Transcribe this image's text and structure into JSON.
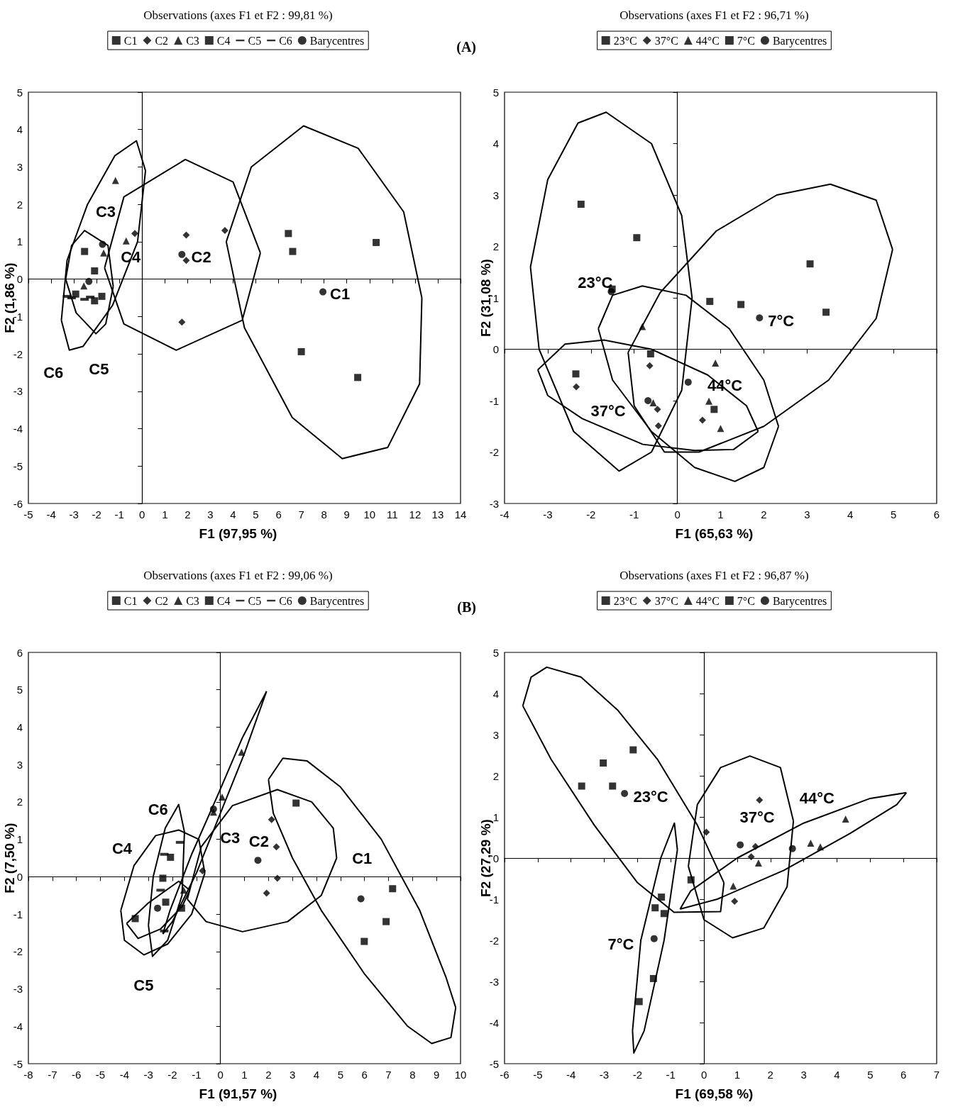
{
  "chart_data": [
    {
      "type": "scatter",
      "title": "Observations (axes F1 et F2 : 99,81 %)",
      "xlabel": "F1 (97,95 %)",
      "ylabel": "F2 (1,86 %)",
      "legend": "top",
      "xlim": [
        -5,
        14
      ],
      "ylim": [
        -6,
        5
      ],
      "xticks": [
        -5,
        -4,
        -3,
        -2,
        -1,
        0,
        1,
        2,
        3,
        4,
        5,
        6,
        7,
        8,
        9,
        10,
        11,
        12,
        13,
        14
      ],
      "yticks": [
        -6,
        -5,
        -4,
        -3,
        -2,
        -1,
        0,
        1,
        2,
        3,
        4,
        5
      ],
      "annotations": [
        "(A)",
        "C1",
        "C2",
        "C3",
        "C4",
        "C5",
        "C6"
      ],
      "series": [
        {
          "name": "C1",
          "marker": "square",
          "color": "#000000",
          "x": [
            6.43,
            6.62,
            10.29,
            7.0,
            9.48
          ],
          "values": [
            1.22,
            0.74,
            0.98,
            -1.94,
            -2.63
          ]
        },
        {
          "name": "C2",
          "marker": "diamond",
          "color": "#000000",
          "x": [
            -0.32,
            1.94,
            3.64,
            1.94,
            1.75
          ],
          "values": [
            1.22,
            1.18,
            1.3,
            0.5,
            -1.15
          ]
        },
        {
          "name": "C3",
          "marker": "triangle",
          "color": "#000000",
          "x": [
            -1.17,
            -0.7,
            -1.69,
            -2.56
          ],
          "values": [
            2.64,
            1.02,
            0.7,
            -0.18
          ]
        },
        {
          "name": "C4",
          "marker": "square",
          "color": "#000000",
          "x": [
            -2.53,
            -2.09,
            -1.77,
            -2.09,
            -2.92
          ],
          "values": [
            0.74,
            0.22,
            -0.46,
            -0.58,
            -0.4
          ]
        },
        {
          "name": "C5",
          "color": "#000000",
          "x": [
            -3.3,
            -2.28
          ],
          "values": [
            -0.46,
            -0.48
          ]
        },
        {
          "name": "C6",
          "color": "#000000",
          "x": [
            -3.1,
            -2.53
          ],
          "values": [
            -0.5,
            -0.54
          ]
        },
        {
          "name": "Barycentres",
          "marker": "circle",
          "color": "#000000",
          "x": [
            7.95,
            1.75,
            -1.74,
            -2.34
          ],
          "values": [
            -0.34,
            0.66,
            0.93,
            -0.06
          ]
        },
        {
          "type": "line",
          "marker": "none",
          "color": "#000000",
          "x": [
            3.7,
            4.8,
            7.1,
            9.5,
            11.5,
            12.3,
            null,
            3.7,
            4.5,
            6.6,
            8.8,
            10.8,
            12.2,
            12.3
          ],
          "values": [
            1.0,
            3.0,
            4.1,
            3.5,
            1.8,
            -0.5,
            null,
            1.0,
            -1.3,
            -3.7,
            -4.8,
            -4.5,
            -2.8,
            -0.5
          ]
        },
        {
          "type": "line",
          "marker": "none",
          "color": "#000000",
          "x": [
            -1.65,
            -0.8,
            1.9,
            4.0,
            5.2,
            null,
            -1.65,
            -0.8,
            1.5,
            4.4,
            5.2
          ],
          "values": [
            0.3,
            2.2,
            3.2,
            2.6,
            0.7,
            null,
            0.3,
            -1.2,
            -1.9,
            -1.1,
            0.7
          ]
        },
        {
          "type": "line",
          "marker": "none",
          "color": "#000000",
          "x": [
            -3.55,
            -3.3,
            -2.4,
            -1.2,
            -0.25,
            0.15,
            null,
            -3.55,
            -3.2,
            -2.6,
            -1.3,
            -0.2,
            0.15
          ],
          "values": [
            -1.1,
            0.5,
            2.0,
            3.3,
            3.7,
            2.9,
            null,
            -1.1,
            -1.9,
            -1.8,
            -0.7,
            1.0,
            2.9
          ]
        },
        {
          "type": "line",
          "marker": "none",
          "color": "#000000",
          "x": [
            -3.36,
            -3.1,
            -2.53,
            -1.5,
            -1.27,
            null,
            -3.36,
            -2.9,
            -2.03,
            -1.6,
            -1.27
          ],
          "values": [
            0,
            0.9,
            1.3,
            0.9,
            -0.2,
            null,
            0,
            -0.9,
            -1.46,
            -1.2,
            -0.2
          ]
        }
      ]
    },
    {
      "type": "scatter",
      "title": "Observations (axes F1 et F2 : 96,71 %)",
      "xlabel": "F1 (65,63 %)",
      "ylabel": "F2 (31,08 %)",
      "legend": "top",
      "xlim": [
        -4,
        6
      ],
      "ylim": [
        -3,
        5
      ],
      "xticks": [
        -4,
        -3,
        -2,
        -1,
        0,
        1,
        2,
        3,
        4,
        5,
        6
      ],
      "yticks": [
        -3,
        -2,
        -1,
        0,
        1,
        2,
        3,
        4,
        5
      ],
      "annotations": [
        "23°C",
        "37°C",
        "44°C",
        "7°C"
      ],
      "series": [
        {
          "name": "23°C",
          "marker": "square",
          "color": "#000000",
          "x": [
            -2.23,
            -0.94,
            -1.51,
            -0.62,
            -2.35
          ],
          "values": [
            2.82,
            2.17,
            1.17,
            -0.09,
            -0.48
          ]
        },
        {
          "name": "37°C",
          "marker": "diamond",
          "color": "#000000",
          "x": [
            -2.34,
            -0.64,
            -0.46,
            -0.44,
            0.58
          ],
          "values": [
            -0.73,
            -0.32,
            -1.17,
            -1.49,
            -1.38
          ]
        },
        {
          "name": "44°C",
          "marker": "triangle",
          "color": "#000000",
          "x": [
            -0.81,
            0.88,
            0.73,
            1.0,
            -0.56
          ],
          "values": [
            0.44,
            -0.27,
            -1.01,
            -1.54,
            -1.04
          ]
        },
        {
          "name": "7°C",
          "marker": "square",
          "color": "#000000",
          "x": [
            0.75,
            1.47,
            3.07,
            3.44,
            0.85
          ],
          "values": [
            0.93,
            0.87,
            1.66,
            0.72,
            -1.17
          ]
        },
        {
          "name": "Barycentres",
          "marker": "circle",
          "color": "#000000",
          "x": [
            -1.53,
            -0.68,
            0.25,
            1.9
          ],
          "values": [
            1.12,
            -1.0,
            -0.64,
            0.61
          ]
        },
        {
          "type": "line",
          "marker": "none",
          "color": "#000000",
          "x": [
            -3.4,
            -3.0,
            -2.3,
            -1.65,
            -0.6,
            0.1,
            0.34,
            null,
            -3.4,
            -3.2,
            -2.4,
            -1.35,
            -0.6,
            0.1,
            0.34
          ],
          "values": [
            1.6,
            3.3,
            4.4,
            4.61,
            4.0,
            2.6,
            1.0,
            null,
            1.6,
            0,
            -1.6,
            -2.37,
            -2.0,
            -0.8,
            1.0
          ]
        },
        {
          "type": "line",
          "marker": "none",
          "color": "#000000",
          "x": [
            -3.23,
            -2.6,
            -1.7,
            -0.6,
            0.7,
            1.6,
            1.87,
            null,
            -3.23,
            -3.0,
            -2.2,
            -0.8,
            0.4,
            1.3,
            1.87
          ],
          "values": [
            -0.4,
            0.1,
            0.18,
            0,
            -0.5,
            -1.1,
            -1.6,
            null,
            -0.4,
            -0.9,
            -1.35,
            -1.85,
            -1.97,
            -1.95,
            -1.6
          ]
        },
        {
          "type": "line",
          "marker": "none",
          "color": "#000000",
          "x": [
            -1.83,
            -1.5,
            -0.81,
            0.2,
            1.2,
            2.0,
            2.34,
            null,
            -1.83,
            -1.5,
            -0.6,
            0.4,
            1.33,
            2.0,
            2.34
          ],
          "values": [
            0.4,
            1.05,
            1.23,
            1.05,
            0.4,
            -0.6,
            -1.5,
            null,
            0.4,
            -0.6,
            -1.6,
            -2.3,
            -2.57,
            -2.3,
            -1.5
          ]
        },
        {
          "type": "line",
          "marker": "none",
          "color": "#000000",
          "x": [
            -1.14,
            -0.4,
            0.9,
            2.3,
            3.54,
            4.6,
            4.98,
            null,
            -1.14,
            -1.0,
            -0.3,
            0.5,
            2.0,
            3.5,
            4.6,
            4.98
          ],
          "values": [
            -0.06,
            1.1,
            2.3,
            3.0,
            3.21,
            2.9,
            1.94,
            null,
            -0.06,
            -1.1,
            -2.0,
            -2.0,
            -1.5,
            -0.6,
            0.6,
            1.94
          ]
        }
      ]
    },
    {
      "type": "scatter",
      "title": "Observations (axes F1 et F2 : 99,06 %)",
      "xlabel": "F1 (91,57 %)",
      "ylabel": "F2 (7,50 %)",
      "legend": "top",
      "xlim": [
        -8,
        10
      ],
      "ylim": [
        -5,
        6
      ],
      "xticks": [
        -8,
        -7,
        -6,
        -5,
        -4,
        -3,
        -2,
        -1,
        0,
        1,
        2,
        3,
        4,
        5,
        6,
        7,
        8,
        9,
        10
      ],
      "yticks": [
        -5,
        -4,
        -3,
        -2,
        -1,
        0,
        1,
        2,
        3,
        4,
        5,
        6
      ],
      "annotations": [
        "(B)",
        "C1",
        "C2",
        "C3",
        "C4",
        "C5",
        "C6"
      ],
      "series": [
        {
          "name": "C1",
          "marker": "square",
          "color": "#000000",
          "x": [
            3.15,
            7.17,
            6.9,
            5.99
          ],
          "values": [
            1.97,
            -0.32,
            -1.2,
            -1.73
          ]
        },
        {
          "name": "C2",
          "marker": "diamond",
          "color": "#000000",
          "x": [
            2.13,
            2.33,
            2.37,
            1.92,
            -0.75
          ],
          "values": [
            1.53,
            0.8,
            -0.04,
            -0.44,
            0.16
          ]
        },
        {
          "name": "C3",
          "marker": "triangle",
          "color": "#000000",
          "x": [
            0.88,
            0.07,
            -0.29,
            -1.53
          ],
          "values": [
            3.33,
            2.13,
            1.73,
            -0.36
          ]
        },
        {
          "name": "C4",
          "marker": "square",
          "color": "#000000",
          "x": [
            -3.55,
            -2.4,
            -2.08,
            -2.28,
            -1.62
          ],
          "values": [
            -1.12,
            -0.04,
            0.52,
            -0.68,
            -0.84
          ]
        },
        {
          "name": "C5",
          "color": "#000000",
          "x": [
            -2.34,
            -2.34
          ],
          "values": [
            0.6,
            -1.45
          ]
        },
        {
          "name": "C6",
          "color": "#000000",
          "x": [
            -1.68,
            -2.49
          ],
          "values": [
            0.92,
            -0.36
          ]
        },
        {
          "name": "Barycentres",
          "marker": "circle",
          "color": "#000000",
          "x": [
            5.85,
            1.56,
            -0.29,
            -2.62
          ],
          "values": [
            -0.59,
            0.44,
            1.81,
            -0.84
          ]
        },
        {
          "type": "line",
          "marker": "none",
          "color": "#000000",
          "x": [
            2.0,
            2.6,
            3.6,
            5.0,
            6.7,
            8.3,
            9.4,
            9.8,
            null,
            2.0,
            2.2,
            3.0,
            4.2,
            6.0,
            7.8,
            8.8,
            9.6,
            9.8
          ],
          "values": [
            2.6,
            3.17,
            3.1,
            2.4,
            1.0,
            -0.9,
            -2.7,
            -3.5,
            null,
            2.6,
            1.7,
            0.5,
            -0.9,
            -2.6,
            -4.0,
            -4.46,
            -4.3,
            -3.5
          ]
        },
        {
          "type": "line",
          "marker": "none",
          "color": "#000000",
          "x": [
            -1.38,
            -0.8,
            0.5,
            2.37,
            3.8,
            4.7,
            4.84,
            null,
            -1.38,
            -0.6,
            0.92,
            2.8,
            4.2,
            4.84
          ],
          "values": [
            -0.6,
            0.8,
            1.9,
            2.33,
            2.0,
            1.3,
            0.5,
            null,
            -0.6,
            -1.2,
            -1.47,
            -1.2,
            -0.5,
            0.5
          ]
        },
        {
          "type": "line",
          "marker": "none",
          "color": "#000000",
          "x": [
            -2.4,
            -2.1,
            -1.2,
            -0.1,
            0.9,
            1.92,
            null,
            -2.4,
            -2.0,
            -1.0,
            0.0,
            1.0,
            1.92
          ],
          "values": [
            -1.53,
            -0.9,
            0.6,
            2.2,
            3.7,
            4.96,
            null,
            -1.53,
            -1.2,
            0.1,
            1.7,
            3.3,
            4.96
          ]
        },
        {
          "type": "line",
          "marker": "none",
          "color": "#000000",
          "x": [
            -4.15,
            -3.6,
            -2.7,
            -1.74,
            -0.9,
            -0.65,
            null,
            -4.15,
            -4.0,
            -3.19,
            -2.2,
            -1.2,
            -0.65
          ],
          "values": [
            -0.9,
            0.3,
            1.1,
            1.25,
            1.0,
            0.1,
            null,
            -0.9,
            -1.7,
            -2.09,
            -1.8,
            -1.0,
            0.1
          ]
        },
        {
          "type": "line",
          "marker": "none",
          "color": "#000000",
          "x": [
            -3.0,
            -2.8,
            -2.3,
            -1.74,
            -1.5,
            null,
            -3.0,
            -2.83,
            -2.2,
            -1.6,
            -1.5
          ],
          "values": [
            -1.3,
            0,
            1.3,
            1.93,
            1.2,
            null,
            -1.3,
            -2.13,
            -1.7,
            -0.5,
            1.2
          ]
        },
        {
          "type": "line",
          "marker": "none",
          "color": "#000000",
          "x": [
            -3.91,
            -3.0,
            -1.74,
            -1.28,
            null,
            -3.91,
            -3.43,
            -2.5,
            -1.6,
            -1.28
          ],
          "values": [
            -1.25,
            -0.7,
            -0.12,
            -0.36,
            null,
            -1.25,
            -1.65,
            -1.4,
            -0.8,
            -0.36
          ]
        }
      ]
    },
    {
      "type": "scatter",
      "title": "Observations (axes F1 et F2 : 96,87 %)",
      "xlabel": "F1 (69,58 %)",
      "ylabel": "F2 (27,29 %)",
      "legend": "top",
      "xlim": [
        -6,
        7
      ],
      "ylim": [
        -5,
        5
      ],
      "xticks": [
        -6,
        -5,
        -4,
        -3,
        -2,
        -1,
        0,
        1,
        2,
        3,
        4,
        5,
        6,
        7
      ],
      "yticks": [
        -5,
        -4,
        -3,
        -2,
        -1,
        0,
        1,
        2,
        3,
        4,
        5
      ],
      "annotations": [
        "23°C",
        "37°C",
        "44°C",
        "7°C"
      ],
      "series": [
        {
          "name": "23°C",
          "marker": "square",
          "color": "#000000",
          "x": [
            -3.68,
            -3.03,
            -2.13,
            -2.75,
            -0.39
          ],
          "values": [
            1.75,
            2.31,
            2.63,
            1.75,
            -0.53
          ]
        },
        {
          "name": "37°C",
          "marker": "diamond",
          "color": "#000000",
          "x": [
            0.07,
            1.67,
            1.55,
            1.42,
            0.92
          ],
          "values": [
            0.63,
            1.41,
            0.28,
            0.03,
            -1.05
          ]
        },
        {
          "name": "44°C",
          "marker": "triangle",
          "color": "#000000",
          "x": [
            4.26,
            3.21,
            3.5,
            1.64,
            0.88
          ],
          "values": [
            0.95,
            0.36,
            0.27,
            -0.12,
            -0.68
          ]
        },
        {
          "name": "7°C",
          "marker": "square",
          "color": "#000000",
          "x": [
            -1.28,
            -1.47,
            -1.2,
            -1.52,
            -1.95
          ],
          "values": [
            -0.95,
            -1.21,
            -1.35,
            -2.93,
            -3.49
          ]
        },
        {
          "name": "Barycentres",
          "marker": "circle",
          "color": "#000000",
          "x": [
            -2.39,
            1.09,
            2.66,
            -1.5
          ],
          "values": [
            1.57,
            0.32,
            0.23,
            -1.96
          ]
        },
        {
          "type": "line",
          "marker": "none",
          "color": "#000000",
          "x": [
            -5.45,
            -5.2,
            -4.73,
            -3.7,
            -2.6,
            -1.4,
            -0.2,
            0.6,
            null,
            -5.45,
            -4.6,
            -3.3,
            -2.0,
            -0.9,
            0.5,
            0.6
          ],
          "values": [
            3.7,
            4.4,
            4.64,
            4.4,
            3.6,
            2.4,
            0.8,
            -0.6,
            null,
            3.7,
            2.4,
            0.8,
            -0.6,
            -1.32,
            -1.3,
            -0.6
          ]
        },
        {
          "type": "line",
          "marker": "none",
          "color": "#000000",
          "x": [
            -0.47,
            -0.2,
            0.5,
            1.38,
            2.3,
            2.69,
            null,
            -0.47,
            0.0,
            0.86,
            1.8,
            2.5,
            2.69
          ],
          "values": [
            -0.2,
            1.3,
            2.2,
            2.48,
            2.2,
            0.9,
            null,
            -0.2,
            -1.5,
            -1.94,
            -1.7,
            -0.7,
            0.9
          ]
        },
        {
          "type": "line",
          "marker": "none",
          "color": "#000000",
          "x": [
            -0.72,
            -0.4,
            1.0,
            3.0,
            5.0,
            6.09,
            null,
            -0.72,
            0.4,
            2.4,
            4.4,
            5.8,
            6.09
          ],
          "values": [
            -1.24,
            -0.8,
            0.0,
            0.85,
            1.45,
            1.59,
            null,
            -1.24,
            -1.0,
            -0.3,
            0.6,
            1.3,
            1.59
          ]
        },
        {
          "type": "line",
          "marker": "none",
          "color": "#000000",
          "x": [
            -2.15,
            -1.9,
            -1.3,
            -0.89,
            -0.8,
            null,
            -2.15,
            -2.11,
            -1.8,
            -1.2,
            -0.8
          ],
          "values": [
            -4.2,
            -2.0,
            0.0,
            0.85,
            0.2,
            null,
            -4.2,
            -4.74,
            -4.2,
            -2.0,
            0.2
          ]
        }
      ]
    }
  ]
}
